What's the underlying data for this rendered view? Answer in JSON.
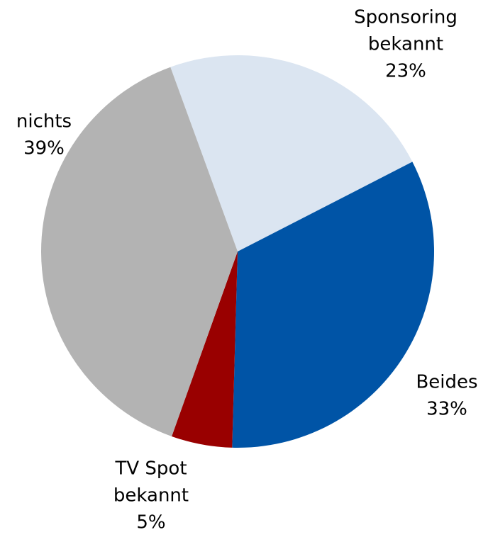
{
  "chart_data": {
    "type": "pie",
    "categories": [
      [
        "Sponsoring",
        "bekannt"
      ],
      [
        "Beides"
      ],
      [
        "TV Spot",
        "bekannt"
      ],
      [
        "nichts"
      ]
    ],
    "values": [
      23,
      33,
      5,
      39
    ],
    "value_labels": [
      "23%",
      "33%",
      "5%",
      "39%"
    ],
    "colors": [
      "#dbe5f1",
      "#0054a6",
      "#990000",
      "#b3b3b3"
    ]
  }
}
